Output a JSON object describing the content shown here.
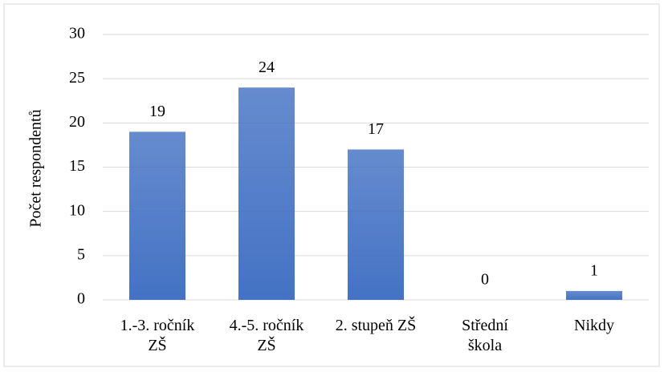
{
  "chart_data": {
    "type": "bar",
    "y_label": "Počet respondentů",
    "categories": [
      "1.-3. ročník\nZŠ",
      "4.-5. ročník\nZŠ",
      "2. stupeň ZŠ",
      "Střední\nškola",
      "Nikdy"
    ],
    "values": [
      19,
      24,
      17,
      0,
      1
    ],
    "color": "#4472c4",
    "ylim": [
      0,
      30
    ],
    "yticks": [
      0,
      5,
      10,
      15,
      20,
      25,
      30
    ],
    "grid": true
  }
}
